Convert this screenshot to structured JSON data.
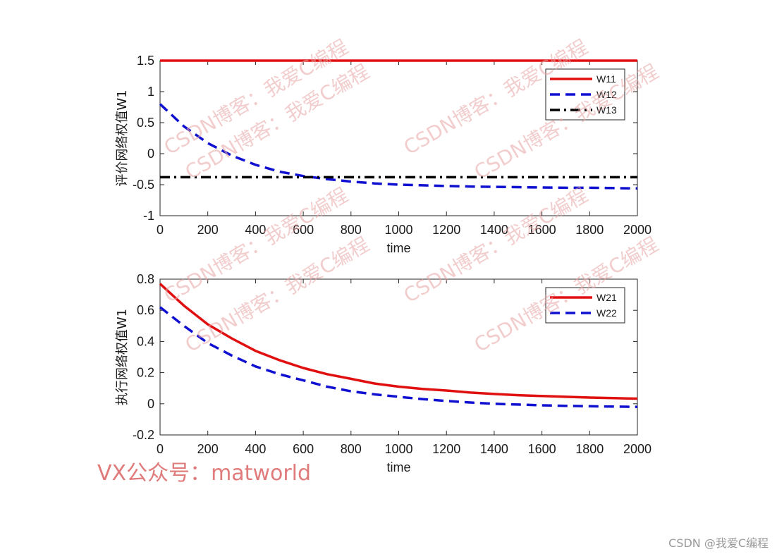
{
  "chart_data": [
    {
      "type": "line",
      "xlabel": "time",
      "ylabel": "评价网络权值W1",
      "xlim": [
        0,
        2000
      ],
      "ylim": [
        -1,
        1.5
      ],
      "xticks": [
        0,
        200,
        400,
        600,
        800,
        1000,
        1200,
        1400,
        1600,
        1800,
        2000
      ],
      "yticks": [
        -1,
        -0.5,
        0,
        0.5,
        1,
        1.5
      ],
      "yticklabels": [
        "-1",
        "-0.5",
        "0",
        "0.5",
        "1",
        "1.5"
      ],
      "legend_position": "top-right",
      "x": [
        0,
        100,
        200,
        300,
        400,
        500,
        600,
        700,
        800,
        900,
        1000,
        1100,
        1200,
        1300,
        1400,
        1500,
        1600,
        1700,
        1800,
        1900,
        2000
      ],
      "series": [
        {
          "name": "W11",
          "color": "#e01010",
          "style": "solid",
          "values": [
            1.5,
            1.5,
            1.5,
            1.5,
            1.5,
            1.5,
            1.5,
            1.5,
            1.5,
            1.5,
            1.5,
            1.5,
            1.5,
            1.5,
            1.5,
            1.5,
            1.5,
            1.5,
            1.5,
            1.5,
            1.5
          ]
        },
        {
          "name": "W12",
          "color": "#1010d0",
          "style": "dashed",
          "values": [
            0.8,
            0.44,
            0.17,
            -0.03,
            -0.18,
            -0.29,
            -0.36,
            -0.41,
            -0.45,
            -0.48,
            -0.5,
            -0.51,
            -0.52,
            -0.53,
            -0.535,
            -0.54,
            -0.545,
            -0.55,
            -0.55,
            -0.555,
            -0.56
          ]
        },
        {
          "name": "W13",
          "color": "#000000",
          "style": "dashdot",
          "values": [
            -0.38,
            -0.38,
            -0.38,
            -0.38,
            -0.38,
            -0.38,
            -0.38,
            -0.38,
            -0.38,
            -0.38,
            -0.38,
            -0.38,
            -0.38,
            -0.38,
            -0.38,
            -0.38,
            -0.38,
            -0.38,
            -0.38,
            -0.38,
            -0.38
          ]
        }
      ]
    },
    {
      "type": "line",
      "xlabel": "time",
      "ylabel": "执行网络权值W1",
      "xlim": [
        0,
        2000
      ],
      "ylim": [
        -0.2,
        0.8
      ],
      "xticks": [
        0,
        200,
        400,
        600,
        800,
        1000,
        1200,
        1400,
        1600,
        1800,
        2000
      ],
      "yticks": [
        -0.2,
        0,
        0.2,
        0.4,
        0.6,
        0.8
      ],
      "yticklabels": [
        "-0.2",
        "0",
        "0.2",
        "0.4",
        "0.6",
        "0.8"
      ],
      "legend_position": "top-right",
      "x": [
        0,
        100,
        200,
        300,
        400,
        500,
        600,
        700,
        800,
        900,
        1000,
        1100,
        1200,
        1300,
        1400,
        1500,
        1600,
        1700,
        1800,
        1900,
        2000
      ],
      "series": [
        {
          "name": "W21",
          "color": "#e01010",
          "style": "solid",
          "values": [
            0.77,
            0.63,
            0.51,
            0.42,
            0.34,
            0.28,
            0.23,
            0.19,
            0.16,
            0.13,
            0.11,
            0.095,
            0.085,
            0.072,
            0.063,
            0.055,
            0.05,
            0.045,
            0.04,
            0.036,
            0.033
          ]
        },
        {
          "name": "W22",
          "color": "#1010d0",
          "style": "dashed",
          "values": [
            0.62,
            0.5,
            0.39,
            0.31,
            0.24,
            0.19,
            0.15,
            0.11,
            0.08,
            0.06,
            0.045,
            0.03,
            0.018,
            0.008,
            0.0,
            -0.005,
            -0.01,
            -0.013,
            -0.016,
            -0.018,
            -0.02
          ]
        }
      ]
    }
  ],
  "watermarks": {
    "blog": "CSDN博客：我爱C编程",
    "vx": "VX公众号：matworld",
    "corner": "CSDN @我爱C编程"
  }
}
